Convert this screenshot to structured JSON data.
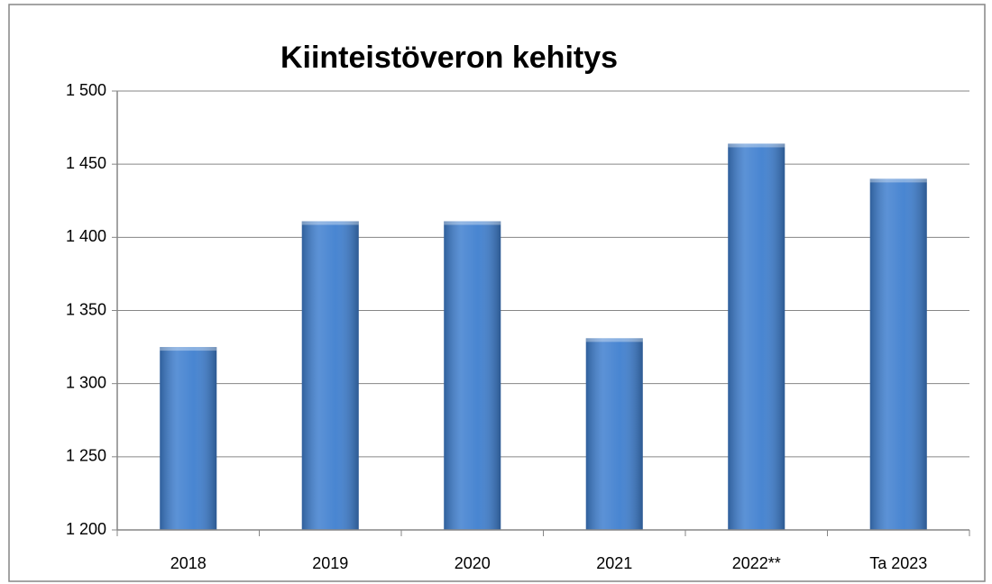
{
  "chart_data": {
    "type": "bar",
    "title": "Kiinteistöveron kehitys",
    "categories": [
      "2018",
      "2019",
      "2020",
      "2021",
      "2022**",
      "Ta 2023"
    ],
    "values": [
      1325,
      1411,
      1411,
      1331,
      1464,
      1440
    ],
    "color": "#3f7fcf",
    "ylim": [
      1200,
      1500
    ],
    "yticks": [
      {
        "value": 1200,
        "label": "1 200"
      },
      {
        "value": 1250,
        "label": "1 250"
      },
      {
        "value": 1300,
        "label": "1 300"
      },
      {
        "value": 1350,
        "label": "1 350"
      },
      {
        "value": 1400,
        "label": "1 400"
      },
      {
        "value": 1450,
        "label": "1 450"
      },
      {
        "value": 1500,
        "label": "1 500"
      }
    ],
    "grid": true
  }
}
